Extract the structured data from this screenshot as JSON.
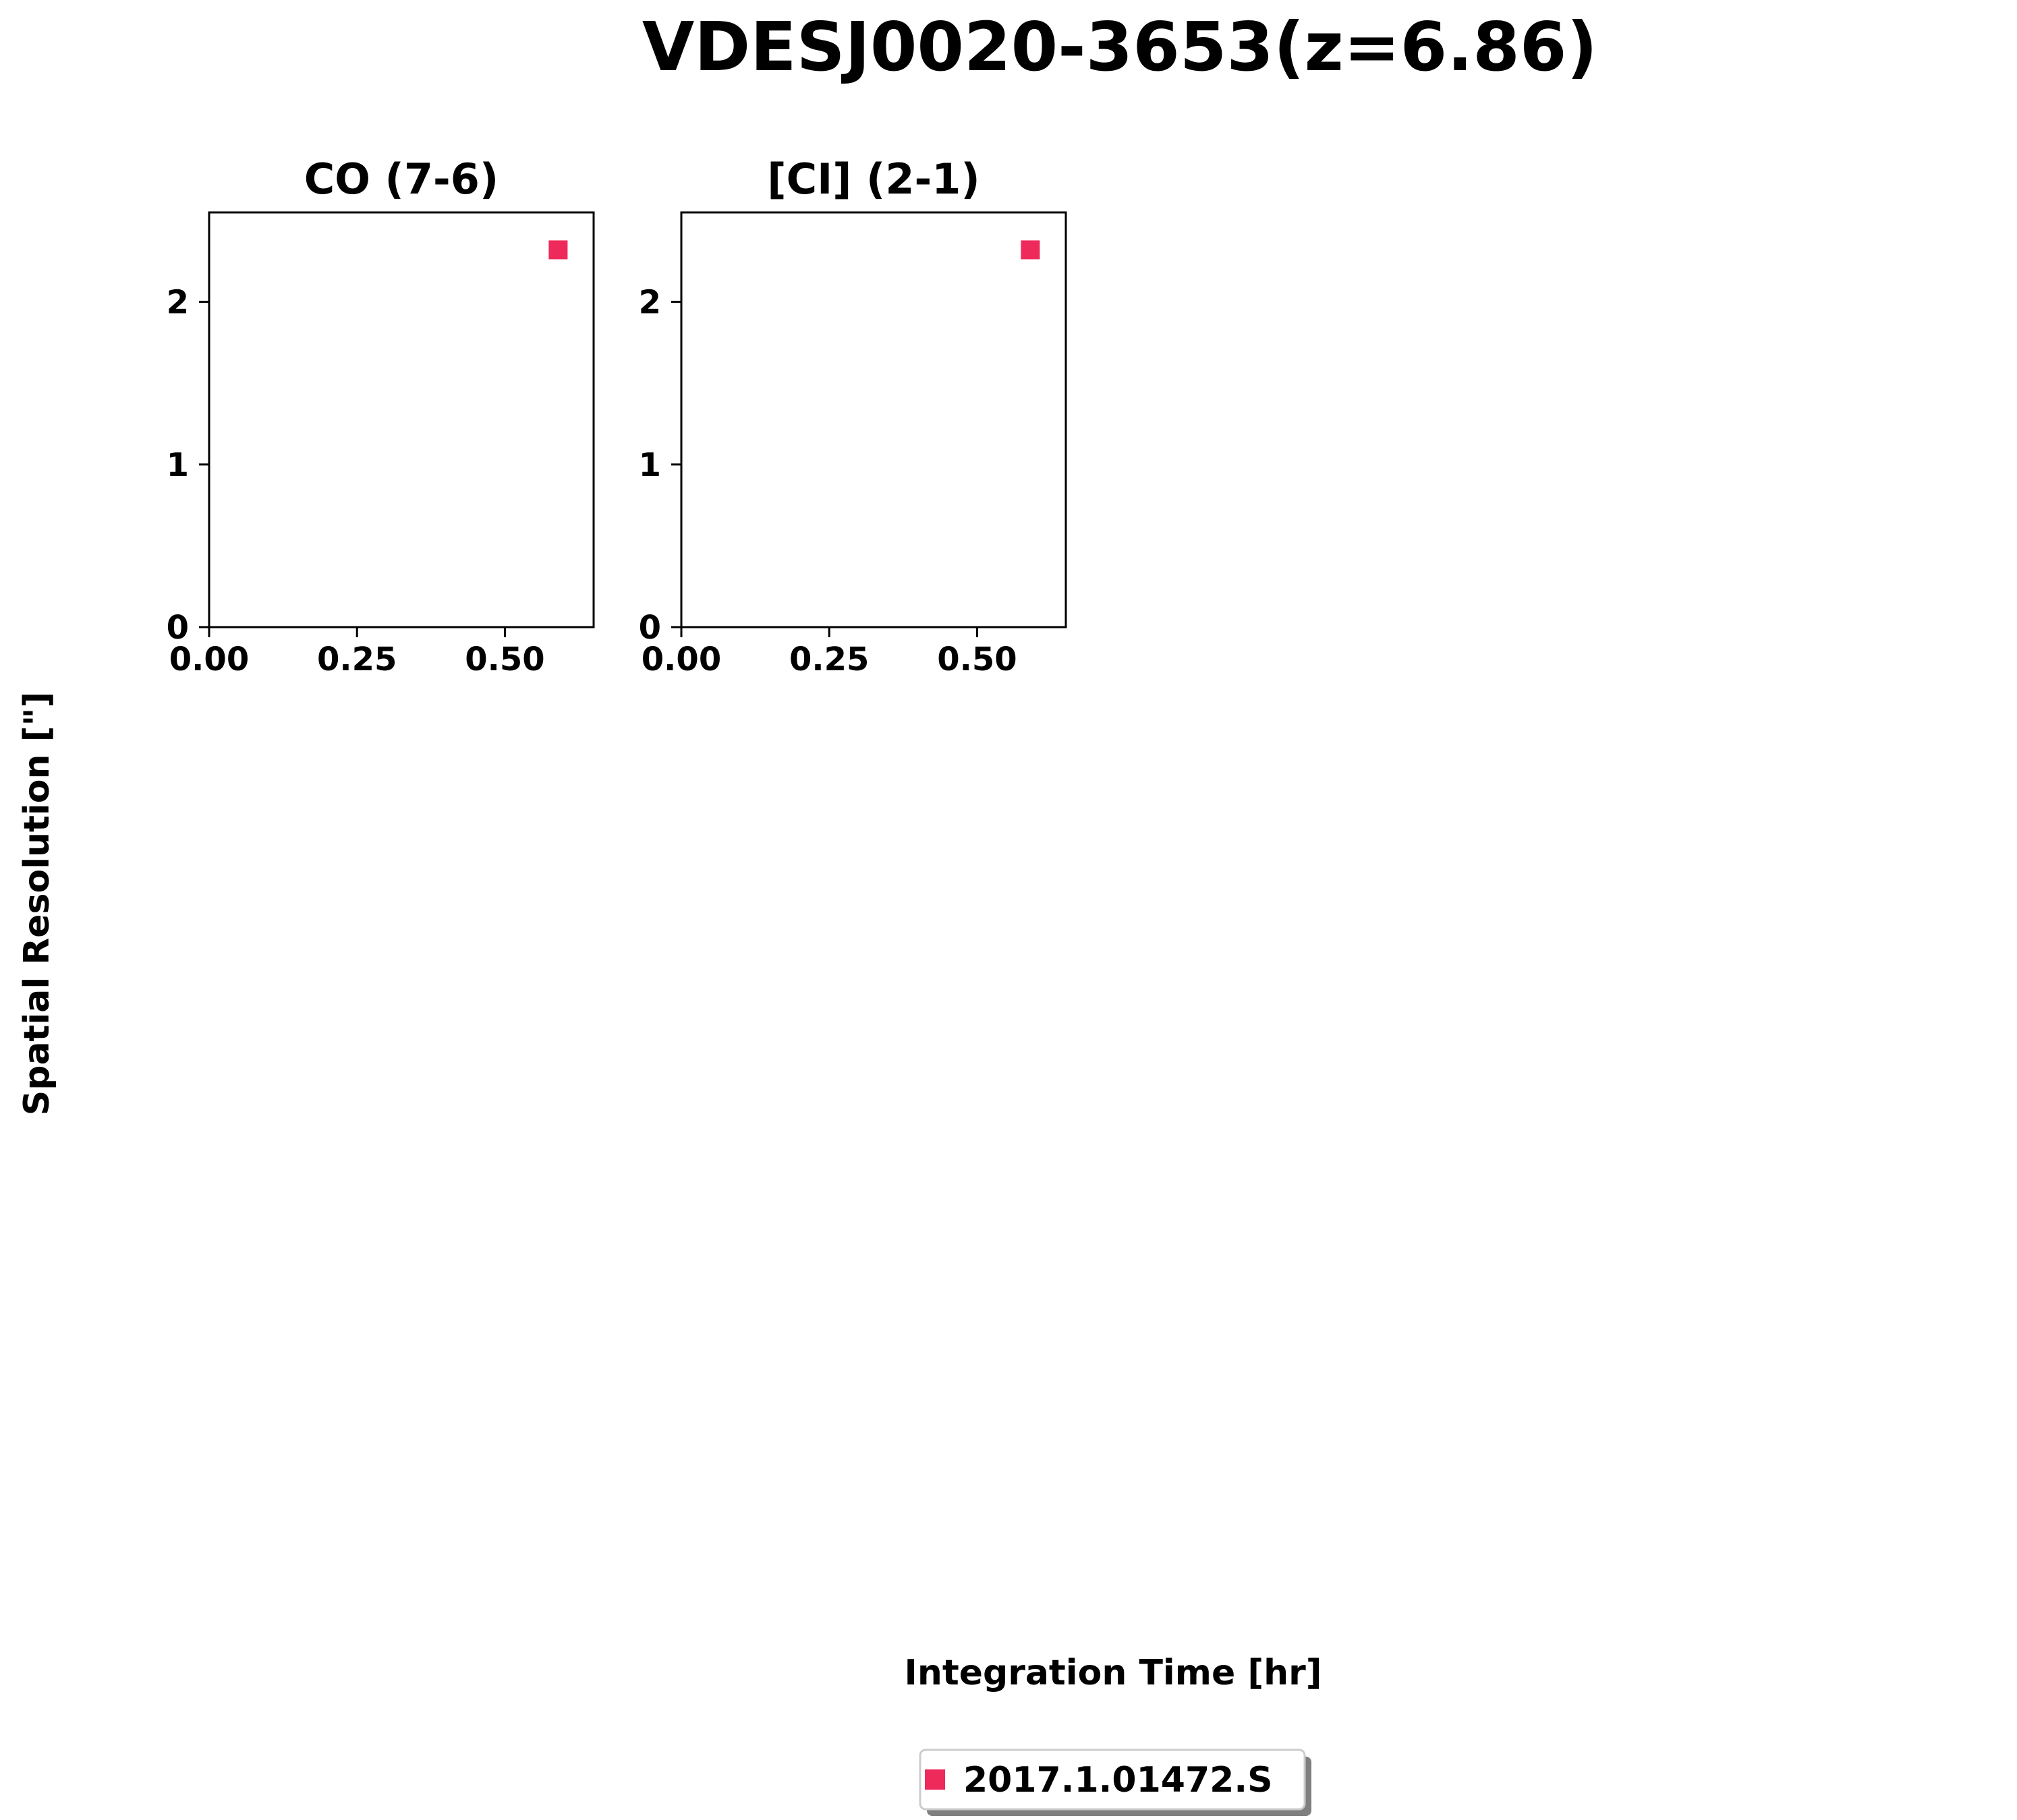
{
  "figure": {
    "title": "VDESJ0020-3653(z=6.86)",
    "xlabel": "Integration Time [hr]",
    "ylabel": "Spatial Resolution [\"]"
  },
  "legend": {
    "placement": "bottom-center",
    "entries": [
      {
        "label": "2017.1.01472.S",
        "color": "#ee2a5b",
        "marker": "square"
      }
    ]
  },
  "chart_data": [
    {
      "type": "scatter",
      "title": "CO (7-6)",
      "xlim": [
        0,
        0.65
      ],
      "ylim": [
        0,
        2.55
      ],
      "xticks": [
        0,
        0.25,
        0.5
      ],
      "xtick_labels": [
        "0.00",
        "0.25",
        "0.50"
      ],
      "yticks": [
        0,
        1,
        2
      ],
      "ytick_labels": [
        "0",
        "1",
        "2"
      ],
      "grid": false,
      "series": [
        {
          "name": "2017.1.01472.S",
          "color": "#ee2a5b",
          "marker": "square",
          "x": [
            0.59
          ],
          "y": [
            2.32
          ]
        }
      ]
    },
    {
      "type": "scatter",
      "title": "[CI] (2-1)",
      "xlim": [
        0,
        0.65
      ],
      "ylim": [
        0,
        2.55
      ],
      "xticks": [
        0,
        0.25,
        0.5
      ],
      "xtick_labels": [
        "0.00",
        "0.25",
        "0.50"
      ],
      "yticks": [
        0,
        1,
        2
      ],
      "ytick_labels": [
        "0",
        "1",
        "2"
      ],
      "grid": false,
      "series": [
        {
          "name": "2017.1.01472.S",
          "color": "#ee2a5b",
          "marker": "square",
          "x": [
            0.59
          ],
          "y": [
            2.32
          ]
        }
      ]
    }
  ]
}
